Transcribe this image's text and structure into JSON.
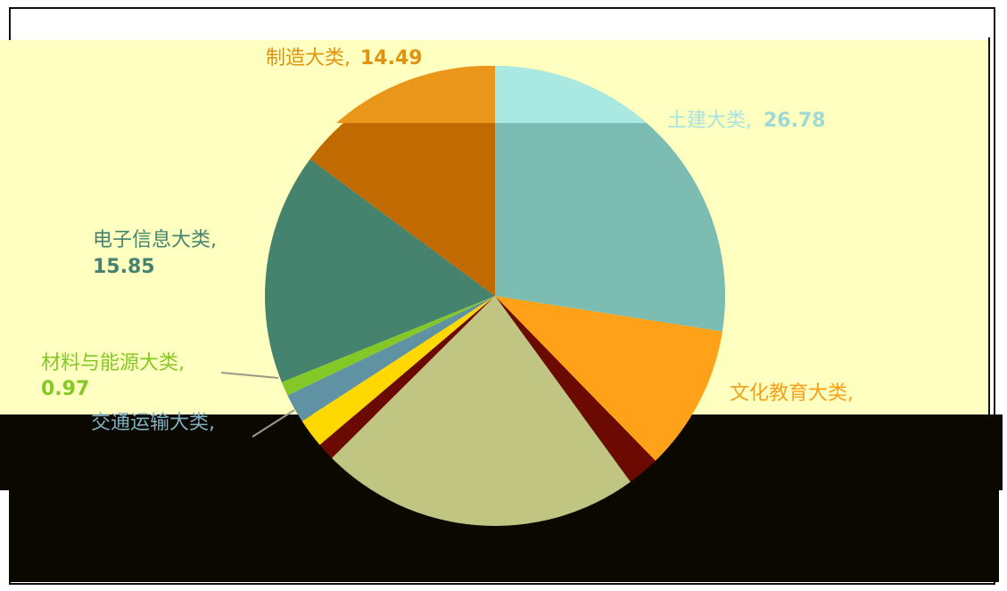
{
  "chart_data": {
    "type": "pie",
    "title": "",
    "slices": [
      {
        "label": "土建大类",
        "value_text": "26.78",
        "value": 26.78,
        "color": "#7bbdb3"
      },
      {
        "label": "文化教育大类",
        "value_text": "",
        "value": 10.0,
        "color": "#ffa21a"
      },
      {
        "label": "",
        "value_text": "",
        "value": 2.2,
        "color": "#6a0a00"
      },
      {
        "label": "",
        "value_text": "",
        "value": 22.0,
        "color": "#c0c582"
      },
      {
        "label": "",
        "value_text": "",
        "value": 1.2,
        "color": "#6a0a00"
      },
      {
        "label": "",
        "value_text": "",
        "value": 2.0,
        "color": "#ffd800"
      },
      {
        "label": "交通运输大类",
        "value_text": "",
        "value": 2.0,
        "color": "#5f93a3"
      },
      {
        "label": "材料与能源大类",
        "value_text": "0.97",
        "value": 0.97,
        "color": "#84c827"
      },
      {
        "label": "电子信息大类",
        "value_text": "15.85",
        "value": 15.85,
        "color": "#45836f"
      },
      {
        "label": "制造大类",
        "value_text": "14.49",
        "value": 14.49,
        "color": "#c06a00"
      }
    ],
    "labels": {
      "tujian": {
        "name": "土建大类,",
        "value": "26.78",
        "name_color": "#a8e3e0",
        "value_color": "#9fd9d6"
      },
      "wenhua": {
        "name": "文化教育大类,",
        "color": "#f59f1a"
      },
      "dianzi": {
        "name": "电子信息大类,",
        "value": "15.85",
        "color": "#45836f"
      },
      "cailiao": {
        "name": "材料与能源大类,",
        "value": "0.97",
        "color": "#84c827"
      },
      "jiaotong": {
        "name": "交通运输大类,",
        "color": "#7fb0c4"
      },
      "zhizao": {
        "name": "制造大类,",
        "value": "14.49",
        "color": "#e0930f"
      }
    }
  }
}
